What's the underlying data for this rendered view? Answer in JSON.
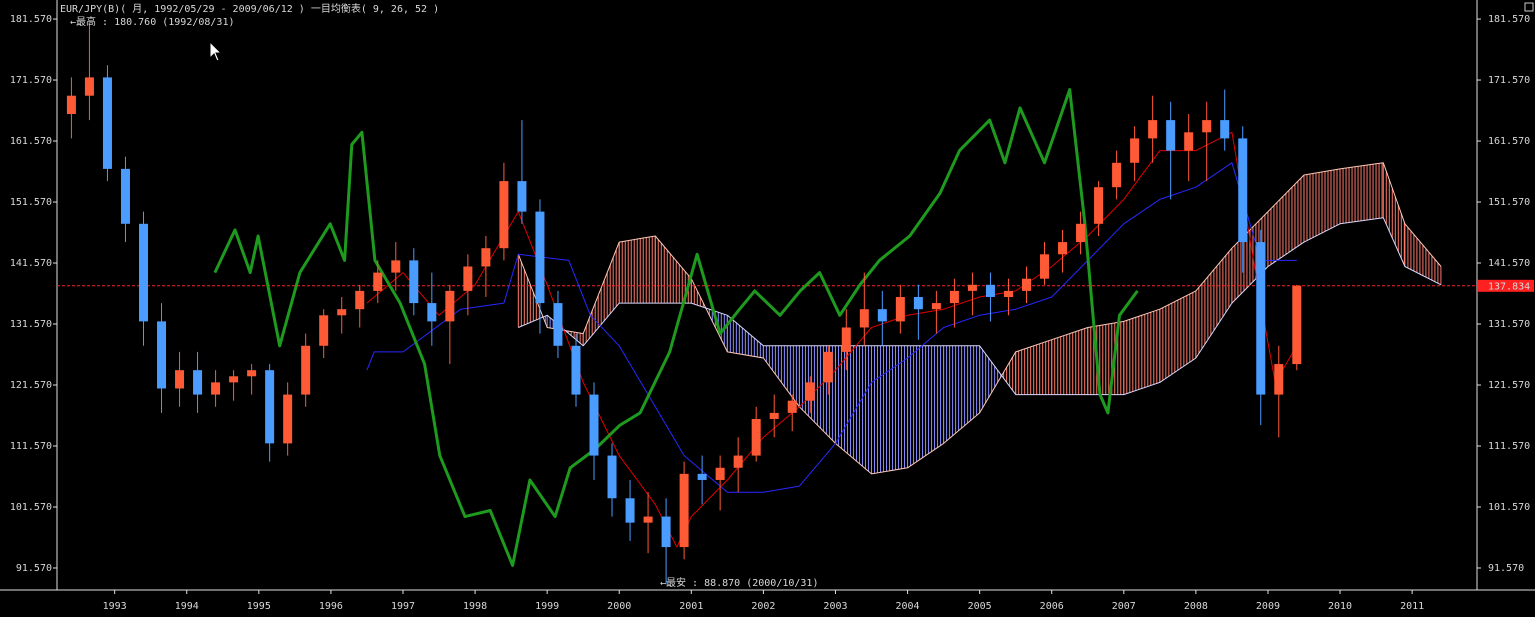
{
  "chart_data": {
    "type": "candlestick",
    "title": "EUR/JPY(B)( 月, 1992/05/29 - 2009/06/12 )    一目均衡表( 9, 26, 52 )",
    "annotations": [
      "←最高 : 180.760 (1992/08/31)",
      "←最安 : 88.870 (2000/10/31)"
    ],
    "xlim": [
      1992.2,
      2011.9
    ],
    "xticks": [
      1993,
      1994,
      1995,
      1996,
      1997,
      1998,
      1999,
      2000,
      2001,
      2002,
      2003,
      2004,
      2005,
      2006,
      2007,
      2008,
      2009,
      2010,
      2011
    ],
    "ylim": [
      87.96,
      184.2
    ],
    "yticks": [
      {
        "value": 91.57,
        "label": "91.570"
      },
      {
        "value": 101.57,
        "label": "101.570"
      },
      {
        "value": 111.57,
        "label": "111.570"
      },
      {
        "value": 121.57,
        "label": "121.570"
      },
      {
        "value": 131.57,
        "label": "131.570"
      },
      {
        "value": 141.57,
        "label": "141.570"
      },
      {
        "value": 151.57,
        "label": "151.570"
      },
      {
        "value": 161.57,
        "label": "161.570"
      },
      {
        "value": 171.57,
        "label": "171.570"
      },
      {
        "value": 181.57,
        "label": "181.570"
      }
    ],
    "last_price": 137.834,
    "last_price_color": "#ff2020",
    "up_color": "#ff5a36",
    "down_color": "#4a9cff",
    "x": [
      1992.4,
      1992.65,
      1992.9,
      1993.15,
      1993.4,
      1993.65,
      1993.9,
      1994.15,
      1994.4,
      1994.65,
      1994.9,
      1995.15,
      1995.4,
      1995.65,
      1995.9,
      1996.15,
      1996.4,
      1996.65,
      1996.9,
      1997.15,
      1997.4,
      1997.65,
      1997.9,
      1998.15,
      1998.4,
      1998.65,
      1998.9,
      1999.15,
      1999.4,
      1999.65,
      1999.9,
      2000.15,
      2000.4,
      2000.65,
      2000.9,
      2001.15,
      2001.4,
      2001.65,
      2001.9,
      2002.15,
      2002.4,
      2002.65,
      2002.9,
      2003.15,
      2003.4,
      2003.65,
      2003.9,
      2004.15,
      2004.4,
      2004.65,
      2004.9,
      2005.15,
      2005.4,
      2005.65,
      2005.9,
      2006.15,
      2006.4,
      2006.65,
      2006.9,
      2007.15,
      2007.4,
      2007.65,
      2007.9,
      2008.15,
      2008.4,
      2008.65,
      2008.9,
      2009.15,
      2009.4
    ],
    "open": [
      166,
      169,
      172,
      157,
      148,
      132,
      121,
      124,
      120,
      122,
      123,
      124,
      112,
      120,
      128,
      133,
      134,
      137,
      140,
      142,
      135,
      132,
      137,
      141,
      144,
      155,
      150,
      135,
      128,
      120,
      110,
      103,
      99,
      100,
      95,
      107,
      106,
      108,
      110,
      116,
      117,
      119,
      122,
      127,
      131,
      134,
      132,
      136,
      134,
      135,
      137,
      138,
      136,
      137,
      139,
      143,
      145,
      148,
      154,
      158,
      162,
      165,
      160,
      163,
      165,
      162,
      145,
      120,
      125
    ],
    "high": [
      172,
      180.76,
      174,
      159,
      150,
      135,
      127,
      127,
      124,
      124,
      125,
      125,
      122,
      130,
      134,
      136,
      138,
      142,
      145,
      144,
      140,
      138,
      143,
      146,
      158,
      165,
      152,
      137,
      130,
      122,
      112,
      106,
      104,
      103,
      109,
      110,
      110,
      113,
      118,
      120,
      120,
      123,
      128,
      134,
      140,
      137,
      138,
      138,
      137,
      139,
      140,
      140,
      139,
      141,
      145,
      147,
      150,
      155,
      160,
      164,
      169,
      168,
      166,
      168,
      170,
      164,
      147,
      128,
      138
    ],
    "low": [
      162,
      165,
      155,
      145,
      128,
      117,
      118,
      117,
      118,
      119,
      120,
      109,
      110,
      118,
      126,
      130,
      131,
      135,
      137,
      133,
      128,
      125,
      133,
      136,
      142,
      148,
      130,
      126,
      118,
      106,
      100,
      96,
      94,
      88.87,
      93,
      102,
      101,
      104,
      109,
      113,
      114,
      117,
      120,
      124,
      128,
      128,
      130,
      129,
      130,
      131,
      133,
      132,
      133,
      135,
      138,
      140,
      143,
      146,
      152,
      155,
      158,
      152,
      155,
      155,
      160,
      140,
      115,
      113,
      124
    ],
    "close": [
      169,
      172,
      157,
      148,
      132,
      121,
      124,
      120,
      122,
      123,
      124,
      112,
      120,
      128,
      133,
      134,
      137,
      140,
      142,
      135,
      132,
      137,
      141,
      144,
      155,
      150,
      135,
      128,
      120,
      110,
      103,
      99,
      100,
      95,
      107,
      106,
      108,
      110,
      116,
      117,
      119,
      122,
      127,
      131,
      134,
      132,
      136,
      134,
      135,
      137,
      138,
      136,
      137,
      139,
      143,
      145,
      148,
      154,
      158,
      162,
      165,
      160,
      163,
      165,
      162,
      145,
      120,
      125,
      137.834
    ],
    "cloud": {
      "x": [
        1998.6,
        1999,
        1999.5,
        2000,
        2000.5,
        2001,
        2001.5,
        2002,
        2002.5,
        2003,
        2003.5,
        2004,
        2004.5,
        2005,
        2005.5,
        2006,
        2006.5,
        2007,
        2007.5,
        2008,
        2008.5,
        2009,
        2009.5,
        2010,
        2010.6,
        2010.9,
        2011.4
      ],
      "span_a": [
        143,
        131,
        130,
        145,
        146,
        139,
        127,
        126,
        118,
        112,
        107,
        108,
        112,
        117,
        127,
        129,
        131,
        132,
        134,
        137,
        144,
        150,
        156,
        157,
        158,
        148,
        141
      ],
      "span_b": [
        131,
        133,
        128,
        135,
        135,
        135,
        133,
        128,
        128,
        128,
        128,
        128,
        128,
        128,
        120,
        120,
        120,
        120,
        122,
        126,
        135,
        141,
        145,
        148,
        149,
        141,
        138
      ],
      "span_a_color": "#ffc8b8",
      "span_b_color": "#d8d8ff",
      "up_hatch": "#ff7a6a",
      "down_hatch": "#8a8aff"
    },
    "lines": [
      {
        "color": "#e00000",
        "width": 1,
        "x": [
          1996.5,
          1997,
          1997.5,
          1998,
          1998.6,
          1999,
          1999.5,
          2000,
          2000.5,
          2000.8,
          2001,
          2001.5,
          2002,
          2002.5,
          2003,
          2003.5,
          2004,
          2004.5,
          2005,
          2005.5,
          2006,
          2006.5,
          2007,
          2007.5,
          2008,
          2008.5,
          2008.9,
          2009.1,
          2009.4
        ],
        "values": [
          135,
          140,
          133,
          138,
          150,
          138,
          122,
          110,
          102,
          95,
          100,
          106,
          113,
          118,
          124,
          131,
          133,
          134,
          136,
          137,
          141,
          146,
          152,
          160,
          160,
          163,
          135,
          122,
          128
        ]
      },
      {
        "color": "#2828ff",
        "width": 1,
        "x": [
          1996.5,
          1996.6,
          1997,
          1997.8,
          1998.4,
          1998.6,
          1999.3,
          1999.6,
          2000,
          2000.5,
          2000.9,
          2001.5,
          2002,
          2002.5,
          2003,
          2003.5,
          2004,
          2004.5,
          2005,
          2005.5,
          2006,
          2006.5,
          2007,
          2007.5,
          2008,
          2008.5,
          2008.9,
          2009.4
        ],
        "values": [
          124,
          127,
          127,
          134,
          135,
          143,
          142,
          133,
          128,
          118,
          110,
          104,
          104,
          105,
          112,
          122,
          126,
          131,
          133,
          134,
          136,
          142,
          148,
          152,
          154,
          158,
          142,
          142
        ]
      },
      {
        "color": "#1e9a1e",
        "width": 3,
        "x": [
          1994.39,
          1994.67,
          1994.88,
          1994.99,
          1995.29,
          1995.57,
          1995.99,
          1996.19,
          1996.29,
          1996.43,
          1996.61,
          1996.96,
          1997.3,
          1997.51,
          1997.86,
          1998.21,
          1998.52,
          1998.76,
          1999.11,
          1999.32,
          1999.66,
          2000.01,
          2000.29,
          2000.7,
          2001.08,
          2001.4,
          2001.67,
          2001.88,
          2002.23,
          2002.51,
          2002.78,
          2003.06,
          2003.34,
          2003.61,
          2004.03,
          2004.45,
          2004.72,
          2005.14,
          2005.35,
          2005.56,
          2005.9,
          2006.25,
          2006.46,
          2006.67,
          2006.78,
          2006.94,
          2007.19
        ],
        "values": [
          140,
          147,
          140,
          146,
          128,
          140,
          148,
          142,
          161,
          163,
          142,
          135,
          125,
          110,
          100,
          101,
          92,
          106,
          100,
          108,
          111,
          115,
          117,
          127,
          143,
          130,
          134,
          137,
          133,
          137,
          140,
          133,
          138,
          142,
          146,
          153,
          160,
          165,
          158,
          167,
          158,
          170,
          148,
          120,
          117,
          133,
          137
        ]
      }
    ]
  }
}
